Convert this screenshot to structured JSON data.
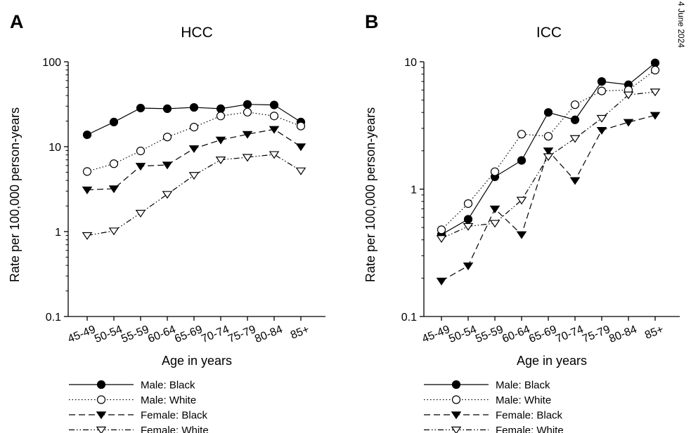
{
  "corner_text": "4 June 2024",
  "chart_data": [
    {
      "panel": "A",
      "type": "line",
      "title": "HCC",
      "xlabel": "Age in years",
      "ylabel": "Rate per 100,000 person-years",
      "yscale": "log",
      "ylim": [
        0.1,
        100
      ],
      "yticks": [
        0.1,
        1,
        10,
        100
      ],
      "ytick_labels": [
        "0.1",
        "1",
        "10",
        "100"
      ],
      "categories": [
        "45-49",
        "50-54",
        "55-59",
        "60-64",
        "65-69",
        "70-74",
        "75-79",
        "80-84",
        "85+"
      ],
      "legend_position": "bottom",
      "grid": false,
      "series": [
        {
          "name": "Male: Black",
          "marker": "circle-filled",
          "dash": "solid",
          "values": [
            13.8,
            19.5,
            28.5,
            28.0,
            29.0,
            28.0,
            31.5,
            31.0,
            19.5
          ]
        },
        {
          "name": "Male: White",
          "marker": "circle-open",
          "dash": "dotted",
          "values": [
            5.1,
            6.3,
            8.9,
            13.0,
            17.0,
            23.0,
            25.5,
            23.0,
            17.5
          ]
        },
        {
          "name": "Female: Black",
          "marker": "triangle-down-filled",
          "dash": "dashed",
          "values": [
            3.1,
            3.2,
            5.9,
            6.1,
            9.5,
            12.0,
            14.0,
            16.0,
            10.0
          ]
        },
        {
          "name": "Female: White",
          "marker": "triangle-down-open",
          "dash": "dash-dot-dot",
          "values": [
            0.9,
            1.02,
            1.65,
            2.75,
            4.6,
            7.0,
            7.5,
            8.1,
            5.2
          ]
        }
      ]
    },
    {
      "panel": "B",
      "type": "line",
      "title": "ICC",
      "xlabel": "Age in years",
      "ylabel": "Rate per 100,000 person-years",
      "yscale": "log",
      "ylim": [
        0.1,
        10
      ],
      "yticks": [
        0.1,
        1,
        10
      ],
      "ytick_labels": [
        "0.1",
        "1",
        "10"
      ],
      "categories": [
        "45-49",
        "50-54",
        "55-59",
        "60-64",
        "65-69",
        "70-74",
        "75-79",
        "80-84",
        "85+"
      ],
      "legend_position": "bottom",
      "grid": false,
      "series": [
        {
          "name": "Male: Black",
          "marker": "circle-filled",
          "dash": "solid",
          "values": [
            0.44,
            0.58,
            1.25,
            1.68,
            4.0,
            3.5,
            7.0,
            6.6,
            9.8
          ]
        },
        {
          "name": "Male: White",
          "marker": "circle-open",
          "dash": "dotted",
          "values": [
            0.48,
            0.77,
            1.37,
            2.7,
            2.6,
            4.6,
            5.9,
            6.0,
            8.6
          ]
        },
        {
          "name": "Female: Black",
          "marker": "triangle-down-filled",
          "dash": "dashed",
          "values": [
            0.19,
            0.25,
            0.7,
            0.44,
            2.0,
            1.17,
            2.9,
            3.35,
            3.8
          ]
        },
        {
          "name": "Female: White",
          "marker": "triangle-down-open",
          "dash": "dash-dot-dot",
          "values": [
            0.41,
            0.51,
            0.54,
            0.82,
            1.8,
            2.5,
            3.6,
            5.5,
            5.8
          ]
        }
      ]
    }
  ]
}
